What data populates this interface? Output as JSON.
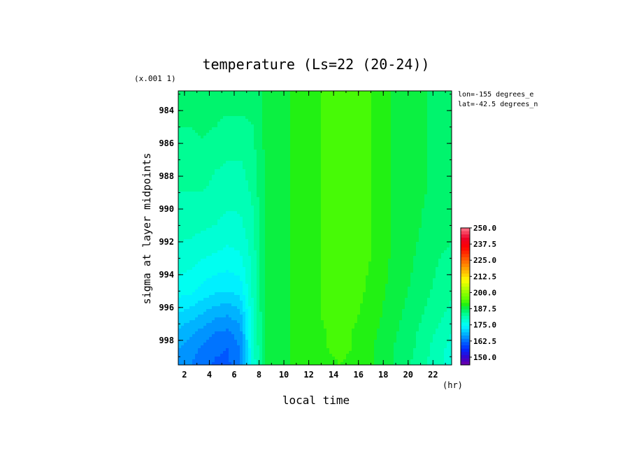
{
  "chart_data": {
    "type": "heatmap",
    "title": "temperature (Ls=22 (20-24))",
    "xlabel": "local time",
    "ylabel": "sigma at layer midpoints",
    "x_unit": "(hr)",
    "y_scale_label": "(x.001 1)",
    "annotations": [
      "lon=-155 degrees_e",
      "lat=-42.5 degrees_n"
    ],
    "xlim": [
      1.5,
      23.5
    ],
    "ylim": [
      999.5,
      982.8
    ],
    "x_ticks": [
      "2",
      "4",
      "6",
      "8",
      "10",
      "12",
      "14",
      "16",
      "18",
      "20",
      "22"
    ],
    "y_ticks": [
      "984",
      "986",
      "988",
      "990",
      "992",
      "994",
      "996",
      "998"
    ],
    "x": [
      1.5,
      2.5,
      3.5,
      4.5,
      5.5,
      6.5,
      7.5,
      8.5,
      9.5,
      10.5,
      11.5,
      12.5,
      13.5,
      14.5,
      15.5,
      16.5,
      17.5,
      18.5,
      19.5,
      20.5,
      21.5,
      22.5,
      23.5
    ],
    "y": [
      982.8,
      985,
      987,
      989,
      991,
      993,
      995,
      996.5,
      997.5,
      998.5,
      999.5
    ],
    "z": [
      [
        186,
        186,
        186.5,
        186.5,
        187,
        187,
        186,
        188,
        189,
        190,
        191,
        192,
        193,
        194,
        194,
        193,
        192,
        190,
        189,
        188,
        187.5,
        187,
        186.5
      ],
      [
        185,
        185,
        185.5,
        185,
        184,
        184,
        185,
        188,
        189,
        190,
        191,
        192,
        193,
        194,
        194,
        193,
        192,
        190,
        189,
        188,
        187.5,
        187,
        186.5
      ],
      [
        184,
        184,
        184,
        183,
        182.5,
        182.5,
        184,
        188,
        189,
        190,
        191,
        192,
        193,
        194,
        194,
        193,
        192,
        190,
        189,
        188,
        187.5,
        187,
        186.5
      ],
      [
        182.5,
        182.5,
        182.5,
        181.5,
        181,
        181,
        183,
        188,
        189,
        190,
        191,
        192,
        193,
        194,
        194,
        193,
        192,
        190,
        189,
        188,
        187.5,
        186.5,
        186
      ],
      [
        181,
        181,
        180.5,
        180,
        179,
        179.5,
        182,
        188,
        189,
        190,
        191,
        192,
        193,
        194,
        194,
        193,
        192,
        190,
        189,
        188,
        187,
        186,
        185.5
      ],
      [
        179,
        178.5,
        177.5,
        177,
        176.5,
        177,
        181,
        188,
        189,
        190,
        191,
        192,
        193,
        194,
        194,
        193,
        192,
        190,
        188.5,
        187.5,
        186.5,
        185,
        184.5
      ],
      [
        176,
        175.5,
        174,
        173,
        172.5,
        173.5,
        180.5,
        188,
        189,
        190,
        191,
        192,
        193,
        194,
        193.5,
        192.5,
        191,
        189.5,
        188,
        187,
        185.5,
        184,
        183
      ],
      [
        172,
        171,
        169.5,
        168,
        167.5,
        169,
        179.5,
        188,
        189,
        190,
        191,
        192,
        193,
        193.5,
        193,
        192,
        190.5,
        189,
        187.5,
        186,
        184.5,
        183,
        181.5
      ],
      [
        169.5,
        168,
        166.5,
        165,
        164.5,
        166.5,
        179,
        188,
        189,
        190,
        191,
        192,
        192.5,
        193,
        192.5,
        191.5,
        190,
        188.5,
        187,
        185.5,
        183.5,
        182,
        180
      ],
      [
        167.5,
        166,
        164.5,
        163,
        162.5,
        165,
        178.5,
        188,
        189,
        190,
        191,
        192,
        192.5,
        193,
        192.5,
        191,
        189.5,
        188,
        186.5,
        185,
        183,
        181,
        179
      ],
      [
        166.5,
        165,
        163.5,
        162,
        162,
        164.5,
        178,
        188,
        189,
        190,
        191,
        191.5,
        192,
        192.5,
        192,
        191,
        189.5,
        188,
        186,
        184.5,
        182.5,
        180.5,
        178.5
      ]
    ],
    "colorbar": {
      "levels": [
        "250.0",
        "237.5",
        "225.0",
        "212.5",
        "200.0",
        "187.5",
        "175.0",
        "162.5",
        "150.0"
      ],
      "min": 144,
      "max": 250,
      "step": 2.5
    },
    "grid": false,
    "legend": "right"
  }
}
